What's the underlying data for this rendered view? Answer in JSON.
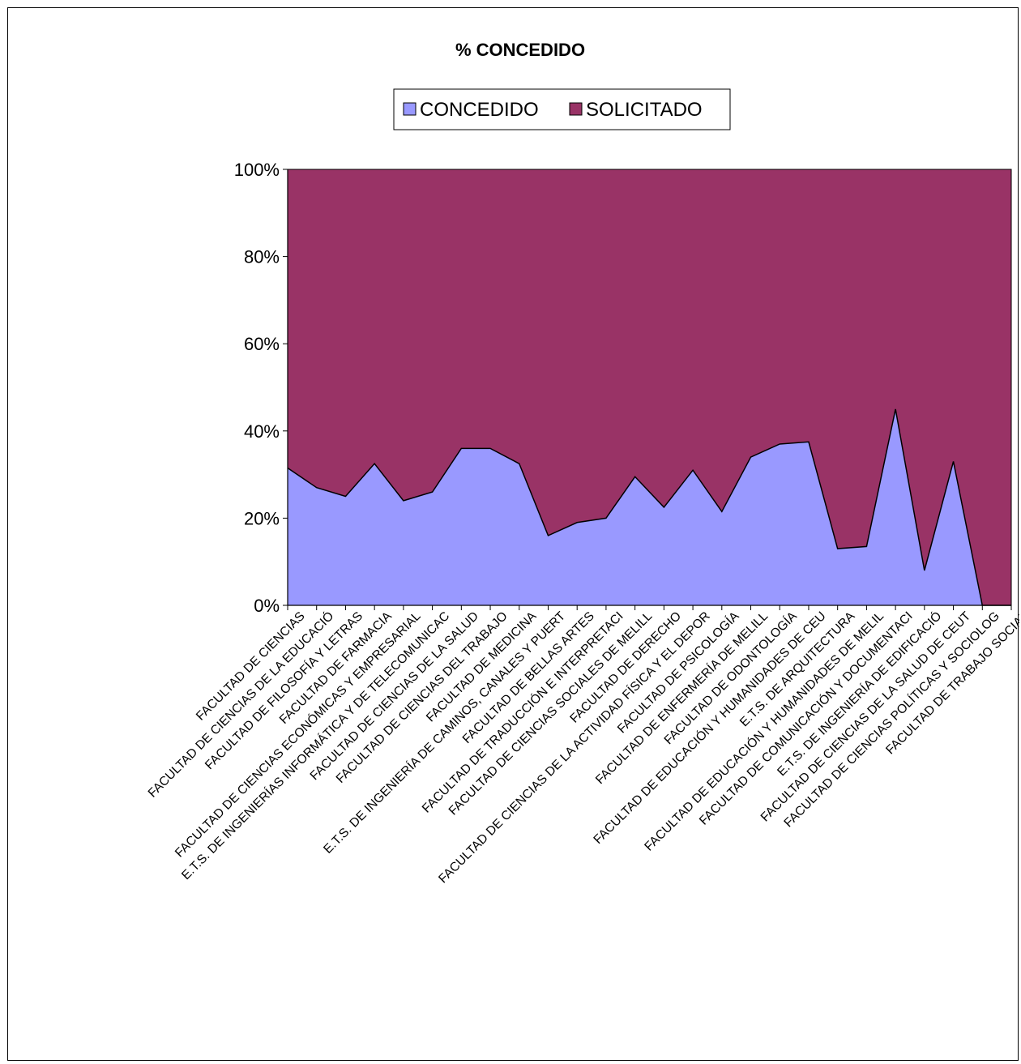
{
  "chart_data": {
    "type": "area",
    "stacked": "percent",
    "title": "% CONCEDIDO",
    "legend": {
      "placement": "top",
      "entries": [
        "CONCEDIDO",
        "SOLICITADO"
      ]
    },
    "xlabel": "",
    "ylabel": "",
    "ylim": [
      0,
      100
    ],
    "yticks": [
      "0%",
      "20%",
      "40%",
      "60%",
      "80%",
      "100%"
    ],
    "grid": false,
    "categories": [
      "FACULTAD DE CIENCIAS",
      "FACULTAD DE CIENCIAS DE LA EDUCACIÓ",
      "FACULTAD DE FILOSOFÍA Y LETRAS",
      "FACULTAD DE FARMACIA",
      "FACULTAD DE CIENCIAS ECONÓMICAS Y EMPRESARIAL",
      "E.T.S. DE INGENIERÍAS INFORMÁTICA Y DE TELECOMUNICAC",
      "FACULTAD DE CIENCIAS DE LA SALUD",
      "FACULTAD DE CIENCIAS DEL TRABAJO",
      "FACULTAD DE MEDICINA",
      "E.T.S. DE INGENIERÍA DE CAMINOS, CANALES Y PUERT",
      "FACULTAD DE BELLAS ARTES",
      "FACULTAD DE TRADUCCIÓN E INTERPRETACI",
      "FACULTAD DE CIENCIAS SOCIALES DE MELILL",
      "FACULTAD DE DERECHO",
      "FACULTAD DE CIENCIAS DE LA ACTIVIDAD FÍSICA Y EL DEPOR",
      "FACULTAD DE PSICOLOGÍA",
      "FACULTAD DE ENFERMERÍA DE MELILL",
      "FACULTAD DE ODONTOLOGÍA",
      "FACULTAD DE EDUCACIÓN Y HUMANIDADES DE CEU",
      "E.T.S. DE ARQUITECTURA",
      "FACULTAD DE EDUCACIÓN Y HUMANIDADES DE MELIL",
      "FACULTAD DE COMUNICACIÓN Y DOCUMENTACI",
      "E.T.S. DE INGENIERÍA DE EDIFICACIÓ",
      "FACULTAD DE CIENCIAS DE LA SALUD DE CEUT",
      "FACULTAD DE CIENCIAS POLÍTICAS Y SOCIOLOG",
      "FACULTAD DE TRABAJO SOCIAL"
    ],
    "series": [
      {
        "name": "CONCEDIDO",
        "color": "#9999ff",
        "values": [
          31.5,
          27,
          25,
          32.5,
          24,
          26,
          36,
          36,
          32.5,
          16,
          19,
          20,
          29.5,
          22.5,
          31,
          21.5,
          34,
          37,
          37.5,
          13,
          13.5,
          45,
          8,
          33,
          0,
          0
        ]
      },
      {
        "name": "SOLICITADO",
        "color": "#993366",
        "values": [
          68.5,
          73,
          75,
          67.5,
          76,
          74,
          64,
          64,
          67.5,
          84,
          81,
          80,
          70.5,
          77.5,
          69,
          78.5,
          66,
          63,
          62.5,
          87,
          86.5,
          55,
          92,
          67,
          100,
          100
        ]
      }
    ]
  }
}
